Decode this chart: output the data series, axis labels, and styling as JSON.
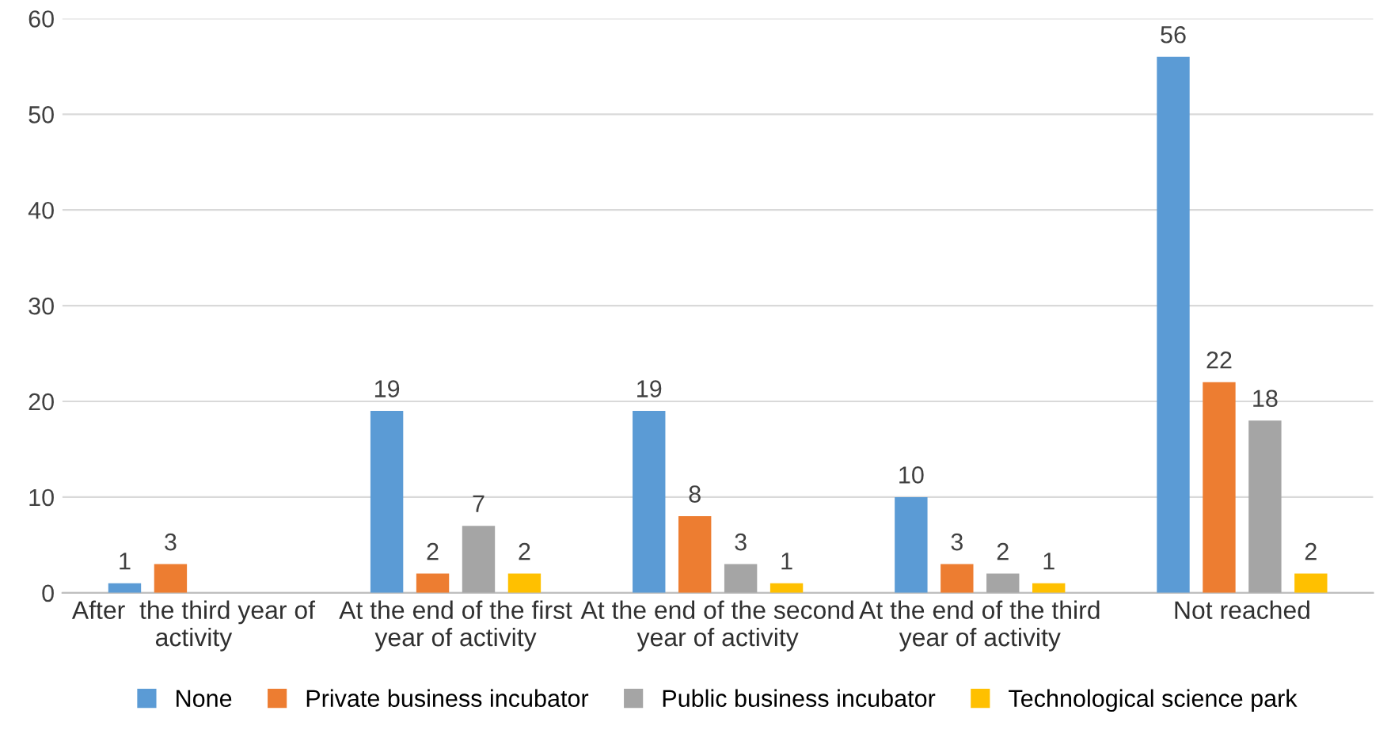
{
  "chart_data": {
    "type": "bar",
    "categories": [
      "After  the third year of activity",
      "At the end of the first year of activity",
      "At the end of the second year of activity",
      "At the end of the third year of activity",
      "Not reached"
    ],
    "series": [
      {
        "name": "None",
        "color": "#5b9bd5",
        "values": [
          1,
          19,
          19,
          10,
          56
        ]
      },
      {
        "name": "Private business incubator",
        "color": "#ed7d31",
        "values": [
          3,
          2,
          8,
          3,
          22
        ]
      },
      {
        "name": "Public business incubator",
        "color": "#a5a5a5",
        "values": [
          null,
          7,
          3,
          2,
          18
        ]
      },
      {
        "name": "Technological science park",
        "color": "#ffc000",
        "values": [
          null,
          2,
          1,
          1,
          2
        ]
      }
    ],
    "ylim": [
      0,
      60
    ],
    "yticks": [
      0,
      10,
      20,
      30,
      40,
      50,
      60
    ],
    "grid": "y",
    "legend": "bottom",
    "data_labels": true
  }
}
